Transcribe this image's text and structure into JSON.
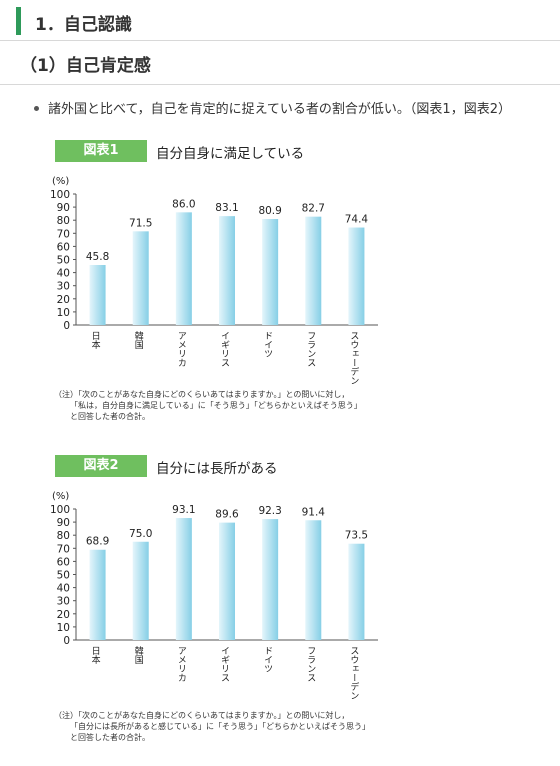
{
  "section": {
    "title": "1．自己認識"
  },
  "subsection": {
    "title": "（1）自己肯定感"
  },
  "bullet": {
    "text": "諸外国と比べて，自己を肯定的に捉えている者の割合が低い。（図表1，図表2）"
  },
  "colors": {
    "badge": "#6fbf5f",
    "accent": "#2e9a5a",
    "bar_light": "#e4f5fb",
    "bar_dark": "#86cfe6"
  },
  "chart_data": [
    {
      "type": "bar",
      "badge": "図表1",
      "title": "自分自身に満足している",
      "ylabel": "(%)",
      "ylim": [
        0,
        100
      ],
      "yticks": [
        0,
        10,
        20,
        30,
        40,
        50,
        60,
        70,
        80,
        90,
        100
      ],
      "categories": [
        "日本",
        "韓国",
        "アメリカ",
        "イギリス",
        "ドイツ",
        "フランス",
        "スウェーデン"
      ],
      "values": [
        45.8,
        71.5,
        86.0,
        83.1,
        80.9,
        82.7,
        74.4
      ],
      "labels": [
        "45.8",
        "71.5",
        "86.0",
        "83.1",
        "80.9",
        "82.7",
        "74.4"
      ],
      "note": [
        "（注）「次のことがあなた自身にどのくらいあてはまりますか。」との問いに対し，",
        "「私は，自分自身に満足している」に「そう思う」「どちらかといえばそう思う」",
        "と回答した者の合計。"
      ]
    },
    {
      "type": "bar",
      "badge": "図表2",
      "title": "自分には長所がある",
      "ylabel": "(%)",
      "ylim": [
        0,
        100
      ],
      "yticks": [
        0,
        10,
        20,
        30,
        40,
        50,
        60,
        70,
        80,
        90,
        100
      ],
      "categories": [
        "日本",
        "韓国",
        "アメリカ",
        "イギリス",
        "ドイツ",
        "フランス",
        "スウェーデン"
      ],
      "values": [
        68.9,
        75.0,
        93.1,
        89.6,
        92.3,
        91.4,
        73.5
      ],
      "labels": [
        "68.9",
        "75.0",
        "93.1",
        "89.6",
        "92.3",
        "91.4",
        "73.5"
      ],
      "note": [
        "（注）「次のことがあなた自身にどのくらいあてはまりますか。」との問いに対し，",
        "「自分には長所があると感じている」に「そう思う」「どちらかといえばそう思う」",
        "と回答した者の合計。"
      ]
    }
  ]
}
